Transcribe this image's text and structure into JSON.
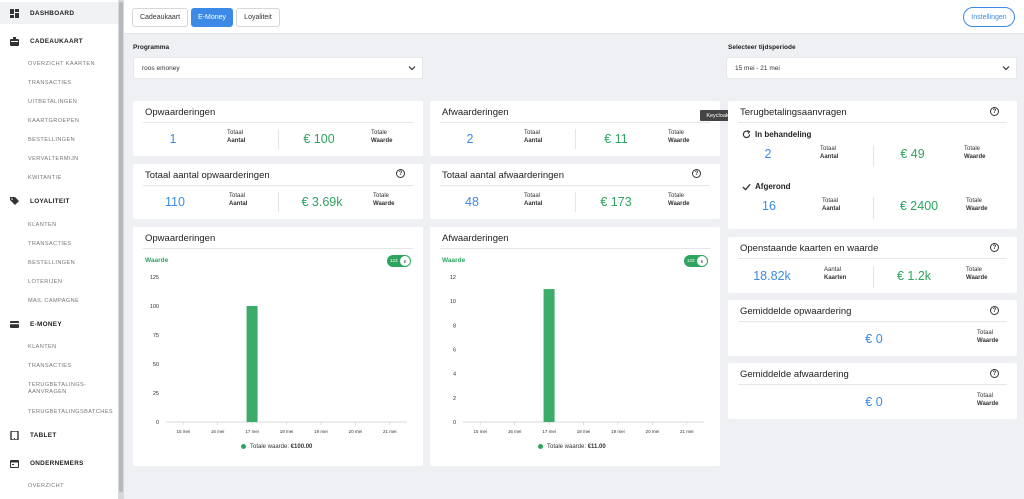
{
  "sidebar": {
    "sections": [
      {
        "label": "DASHBOARD",
        "icon": "dashboard-icon"
      },
      {
        "label": "CADEAUKAART",
        "icon": "gift-card-icon",
        "items": [
          "OVERZICHT KAARTEN",
          "TRANSACTIES",
          "UITBETALINGEN",
          "KAARTGROEPEN",
          "BESTELLINGEN",
          "VERVALTERMIJN",
          "KWITANTIE"
        ]
      },
      {
        "label": "LOYALITEIT",
        "icon": "tag-icon",
        "items": [
          "KLANTEN",
          "TRANSACTIES",
          "BESTELLINGEN",
          "LOTERIJEN",
          "MAIL CAMPAGNE"
        ]
      },
      {
        "label": "E-MONEY",
        "icon": "card-icon",
        "items": [
          "KLANTEN",
          "TRANSACTIES",
          "TERUGBETALINGS-AANVRAGEN",
          "TERUGBETALINGSBATCHES"
        ]
      },
      {
        "label": "TABLET",
        "icon": "tablet-icon"
      },
      {
        "label": "ONDERNEMERS",
        "icon": "calendar-icon",
        "items": [
          "OVERZICHT"
        ]
      }
    ]
  },
  "tabs": [
    "Cadeaukaart",
    "E-Money",
    "Loyaliteit"
  ],
  "active_tab": "E-Money",
  "settings_label": "Instellingen",
  "filters": {
    "program_label": "Programma",
    "program_value": "roos emoney",
    "period_label": "Selecteer tijdsperiode",
    "period_value": "15 mei - 21 mei"
  },
  "tooltip": "Keycloak",
  "cards": {
    "opwaarderingen": {
      "title": "Opwaarderingen",
      "count": "1",
      "count_label": "Totaal",
      "count_label_b": "Aantal",
      "value": "€ 100",
      "value_label": "Totale",
      "value_label_b": "Waarde"
    },
    "afwaarderingen": {
      "title": "Afwaarderingen",
      "count": "2",
      "count_label": "Totaal",
      "count_label_b": "Aantal",
      "value": "€ 11",
      "value_label": "Totale",
      "value_label_b": "Waarde"
    },
    "totaal_opw": {
      "title": "Totaal aantal opwaarderingen",
      "count": "110",
      "count_label": "Totaal",
      "count_label_b": "Aantal",
      "value": "€ 3.69k",
      "value_label": "Totale",
      "value_label_b": "Waarde"
    },
    "totaal_afw": {
      "title": "Totaal aantal afwaarderingen",
      "count": "48",
      "count_label": "Totaal",
      "count_label_b": "Aantal",
      "value": "€ 173",
      "value_label": "Totale",
      "value_label_b": "Waarde"
    },
    "terugbetaling": {
      "title": "Terugbetalingsaanvragen",
      "pending_label": "In behandeling",
      "pending_count": "2",
      "pending_value": "€ 49",
      "done_label": "Afgerond",
      "done_count": "16",
      "done_value": "€ 2400",
      "count_label": "Totaal",
      "count_label_b": "Aantal",
      "value_label": "Totale",
      "value_label_b": "Waarde"
    },
    "openstaand": {
      "title": "Openstaande kaarten en waarde",
      "count": "18.82k",
      "count_label": "Aantal",
      "count_label_b": "Kaarten",
      "value": "€ 1.2k",
      "value_label": "Totale",
      "value_label_b": "Waarde"
    },
    "gem_opw": {
      "title": "Gemiddelde opwaardering",
      "value": "€ 0",
      "value_label": "Totaal",
      "value_label_b": "Waarde"
    },
    "gem_afw": {
      "title": "Gemiddelde afwaardering",
      "value": "€ 0",
      "value_label": "Totaal",
      "value_label_b": "Waarde"
    }
  },
  "charts_meta": {
    "opw": {
      "title": "Opwaarderingen",
      "mode_label": "Waarde",
      "toggle_left": "123",
      "toggle_right": "€",
      "legend_label": "Totale waarde:",
      "legend_value": "€100.00"
    },
    "afw": {
      "title": "Afwaarderingen",
      "mode_label": "Waarde",
      "toggle_left": "123",
      "toggle_right": "€",
      "legend_label": "Totale waarde:",
      "legend_value": "€11.00"
    }
  },
  "colors": {
    "accent": "#3d8ae6",
    "positive": "#2ea460"
  },
  "chart_data": [
    {
      "type": "bar",
      "categories": [
        "15 mei",
        "16 mei",
        "17 mei",
        "18 mei",
        "19 mei",
        "20 mei",
        "21 mei"
      ],
      "values": [
        0,
        0,
        100,
        0,
        0,
        0,
        0
      ],
      "ylim": [
        0,
        125
      ],
      "yticks": [
        0,
        25,
        50,
        75,
        100,
        125
      ],
      "grid": false
    },
    {
      "type": "bar",
      "categories": [
        "15 mei",
        "16 mei",
        "17 mei",
        "18 mei",
        "19 mei",
        "20 mei",
        "21 mei"
      ],
      "values": [
        0,
        0,
        11,
        0,
        0,
        0,
        0
      ],
      "ylim": [
        0,
        12
      ],
      "yticks": [
        0,
        2,
        4,
        6,
        8,
        10,
        12
      ],
      "grid": false
    }
  ]
}
